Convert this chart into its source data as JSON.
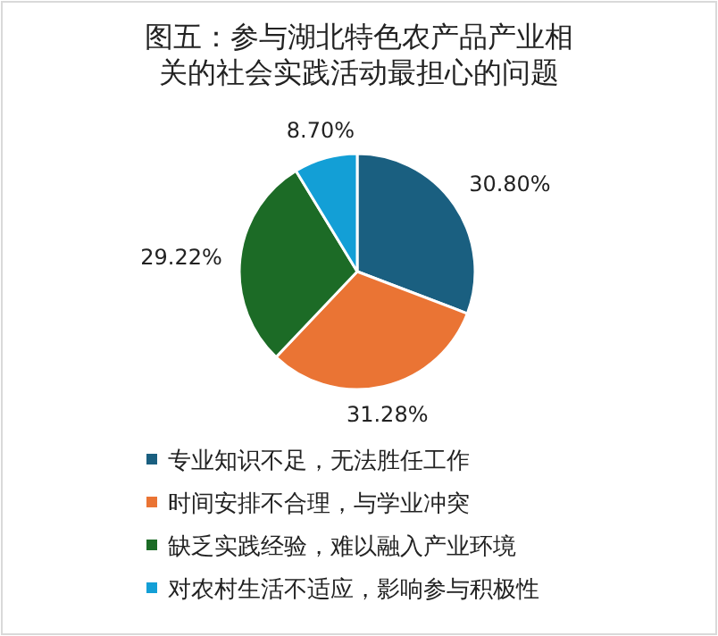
{
  "chart_data": {
    "type": "pie",
    "title": "图五：参与湖北特色农产品产业相关的社会实践活动最担心的问题",
    "categories": [
      "专业知识不足，无法胜任工作",
      "时间安排不合理，与学业冲突",
      "缺乏实践经验，难以融入产业环境",
      "对农村生活不适应，影响参与积极性"
    ],
    "values": [
      30.8,
      31.28,
      29.22,
      8.7
    ],
    "value_labels": [
      "30.80%",
      "31.28%",
      "29.22%",
      "8.70%"
    ],
    "colors": [
      "#1a5f80",
      "#ea7434",
      "#1c6b26",
      "#139fd6"
    ],
    "legend": "bottom"
  }
}
